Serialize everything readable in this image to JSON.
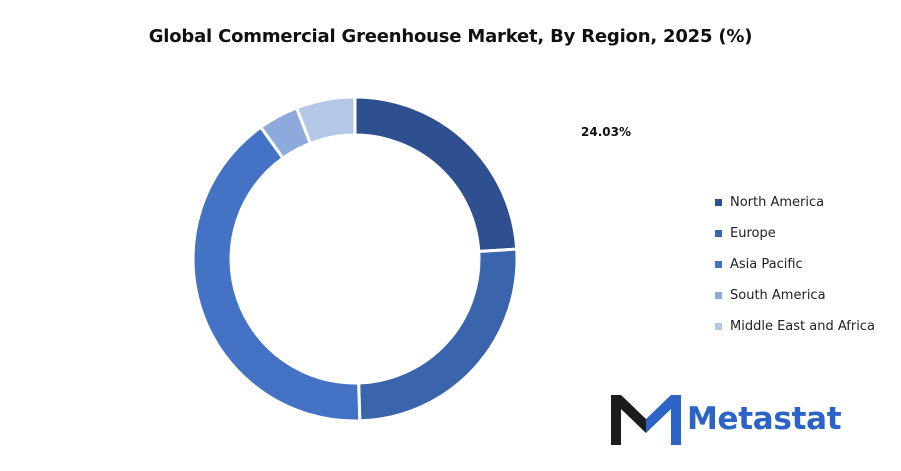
{
  "chart_data": {
    "type": "pie",
    "variant": "donut",
    "title": "Global Commercial Greenhouse Market, By Region, 2025 (%)",
    "categories": [
      "North America",
      "Europe",
      "Asia Pacific",
      "South America",
      "Middle East and Africa"
    ],
    "values": [
      24.03,
      25.5,
      40.6,
      4.0,
      5.87
    ],
    "colors": [
      "#2e5090",
      "#3a65ac",
      "#4472c4",
      "#8ea9db",
      "#b4c7e7"
    ],
    "data_labels": [
      "24.03%",
      "",
      "",
      "",
      ""
    ],
    "legend_position": "right",
    "start_angle_deg": 0,
    "direction": "clockwise"
  },
  "brand": {
    "name": "Metastat",
    "text_color": "#2b63c6",
    "logo_dark": "#1c1c1c",
    "logo_blue": "#2b63c6",
    "logo_icon": "metastat-m-logo-icon"
  }
}
